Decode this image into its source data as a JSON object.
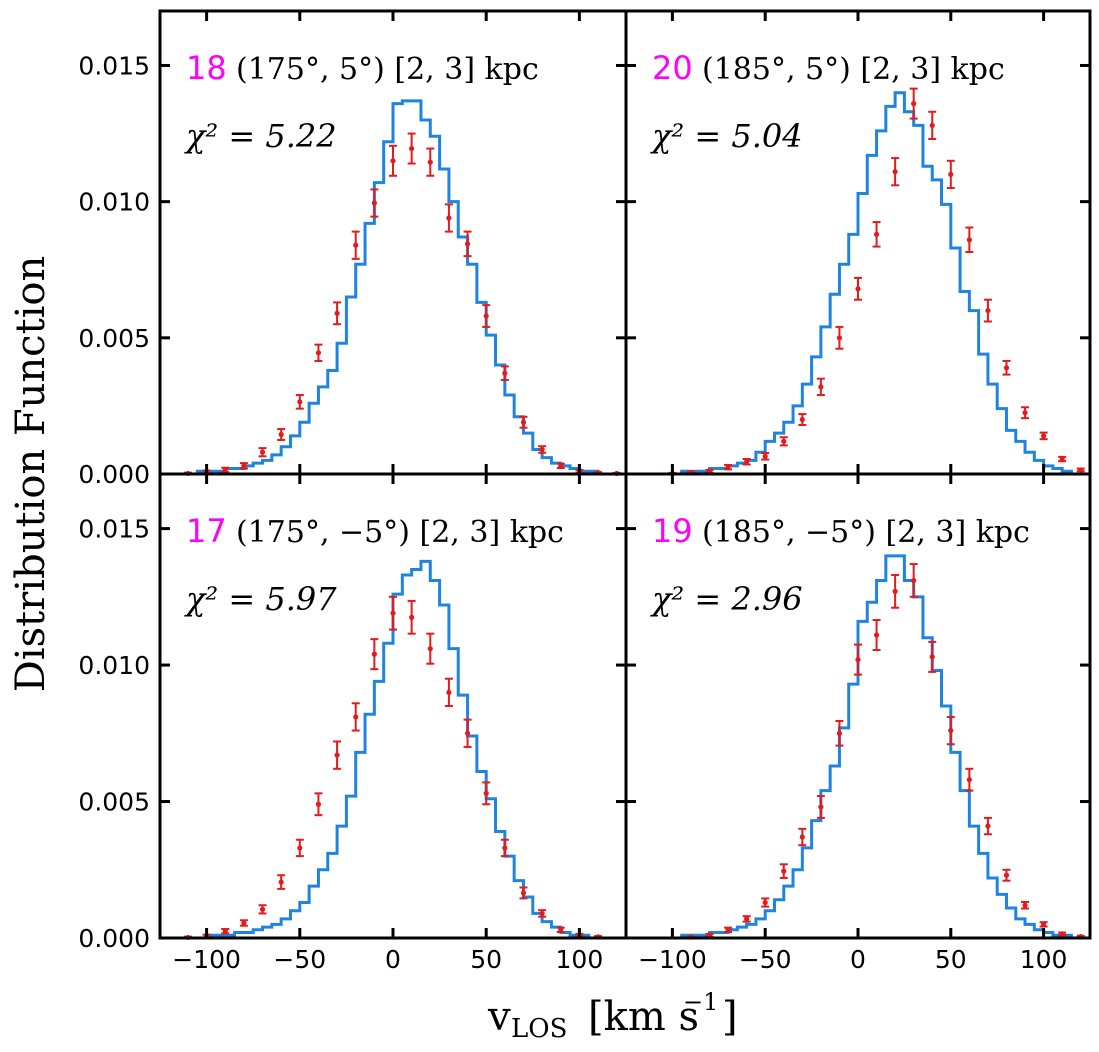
{
  "figure": {
    "ylabel": "Distribution Function",
    "xlabel_main": "v",
    "xlabel_sub": "LOS",
    "xlabel_unit": "[km s",
    "xlabel_unit_exp": "−1",
    "xlabel_unit_close": "]"
  },
  "colors": {
    "model": "#1f84e0",
    "data": "#e41a1c",
    "panel_id": "#ff00ff",
    "axes": "#000000"
  },
  "chart_data": [
    {
      "type": "histogram-step+errorbar",
      "panel_id": "18",
      "panel_position": "top-left",
      "label": "(175°, 5°) [2, 3] kpc",
      "label_coords": "(175",
      "label_lat": "5",
      "label_range": "[2, 3] kpc",
      "chi2_label": "χ² = 5.22",
      "chi2": "5.22",
      "xlim": [
        -125,
        125
      ],
      "ylim": [
        0,
        0.017
      ],
      "xticks": [
        -100,
        -50,
        0,
        50,
        100
      ],
      "yticks": [
        0.0,
        0.005,
        0.01,
        0.015
      ],
      "yticklabels": [
        "0.000",
        "0.005",
        "0.010",
        "0.015"
      ],
      "xticklabels": [
        "−100",
        "−50",
        "0",
        "50",
        "100"
      ],
      "show_xticklabels": false,
      "show_yticklabels": true,
      "model": {
        "bin_edges": [
          -125,
          -120,
          -115,
          -110,
          -105,
          -100,
          -95,
          -90,
          -85,
          -80,
          -75,
          -70,
          -65,
          -60,
          -55,
          -50,
          -45,
          -40,
          -35,
          -30,
          -25,
          -20,
          -15,
          -10,
          -5,
          0,
          5,
          10,
          15,
          20,
          25,
          30,
          35,
          40,
          45,
          50,
          55,
          60,
          65,
          70,
          75,
          80,
          85,
          90,
          95,
          100,
          105,
          110,
          115,
          120,
          125
        ],
        "values": [
          0.0,
          0.0,
          0.0,
          0.0,
          0.0001,
          0.0001,
          0.0001,
          0.0002,
          0.0002,
          0.0003,
          0.0004,
          0.0005,
          0.0007,
          0.001,
          0.0014,
          0.0019,
          0.0026,
          0.0032,
          0.0038,
          0.0048,
          0.0065,
          0.0077,
          0.0092,
          0.0107,
          0.0122,
          0.0136,
          0.0137,
          0.0137,
          0.013,
          0.0124,
          0.0112,
          0.01,
          0.0087,
          0.0077,
          0.0063,
          0.0051,
          0.004,
          0.0029,
          0.0021,
          0.0015,
          0.0009,
          0.0006,
          0.0004,
          0.0003,
          0.0002,
          0.0001,
          0.0001,
          0.0,
          0.0,
          0.0
        ]
      },
      "data": {
        "x": [
          -110,
          -100,
          -90,
          -80,
          -70,
          -60,
          -50,
          -40,
          -30,
          -20,
          -10,
          0,
          10,
          20,
          30,
          40,
          50,
          60,
          70,
          80,
          90,
          100,
          110,
          120
        ],
        "y": [
          2e-05,
          7e-05,
          0.00015,
          0.0003,
          0.0008,
          0.00145,
          0.00265,
          0.00445,
          0.0059,
          0.0084,
          0.00995,
          0.0115,
          0.01195,
          0.01145,
          0.0094,
          0.00845,
          0.0058,
          0.0037,
          0.0019,
          0.0009,
          0.0003,
          0.0001,
          4e-05,
          2e-05
        ],
        "err": [
          3e-05,
          6e-05,
          8e-05,
          0.0001,
          0.00015,
          0.0002,
          0.00025,
          0.0003,
          0.0004,
          0.0005,
          0.0005,
          0.00055,
          0.00055,
          0.0005,
          0.0005,
          0.00045,
          0.0004,
          0.00025,
          0.0002,
          0.00012,
          8e-05,
          5e-05,
          3e-05,
          2e-05
        ]
      }
    },
    {
      "type": "histogram-step+errorbar",
      "panel_id": "20",
      "panel_position": "top-right",
      "label": "(185°, 5°) [2, 3] kpc",
      "label_coords": "(185",
      "label_lat": "5",
      "label_range": "[2, 3] kpc",
      "chi2_label": "χ² = 5.04",
      "chi2": "5.04",
      "xlim": [
        -125,
        125
      ],
      "ylim": [
        0,
        0.017
      ],
      "xticks": [
        -100,
        -50,
        0,
        50,
        100
      ],
      "yticks": [
        0.0,
        0.005,
        0.01,
        0.015
      ],
      "yticklabels": [
        "0.000",
        "0.005",
        "0.010",
        "0.015"
      ],
      "xticklabels": [
        "−100",
        "−50",
        "0",
        "50",
        "100"
      ],
      "show_xticklabels": false,
      "show_yticklabels": false,
      "model": {
        "bin_edges": [
          -125,
          -120,
          -115,
          -110,
          -105,
          -100,
          -95,
          -90,
          -85,
          -80,
          -75,
          -70,
          -65,
          -60,
          -55,
          -50,
          -45,
          -40,
          -35,
          -30,
          -25,
          -20,
          -15,
          -10,
          -5,
          0,
          5,
          10,
          15,
          20,
          25,
          30,
          35,
          40,
          45,
          50,
          55,
          60,
          65,
          70,
          75,
          80,
          85,
          90,
          95,
          100,
          105,
          110,
          115,
          120,
          125
        ],
        "values": [
          0.0,
          0.0,
          0.0,
          0.0,
          0.0,
          0.0,
          0.0001,
          0.0001,
          0.0001,
          0.0002,
          0.0002,
          0.0003,
          0.0004,
          0.0005,
          0.0008,
          0.0012,
          0.0015,
          0.0019,
          0.0025,
          0.0033,
          0.0043,
          0.0054,
          0.0066,
          0.0077,
          0.0088,
          0.0103,
          0.0117,
          0.0126,
          0.0135,
          0.014,
          0.0133,
          0.0128,
          0.0113,
          0.0108,
          0.0099,
          0.0083,
          0.0067,
          0.006,
          0.0044,
          0.0033,
          0.0024,
          0.0016,
          0.0012,
          0.0008,
          0.0005,
          0.0003,
          0.0002,
          0.0001,
          0.0,
          0.0
        ]
      },
      "data": {
        "x": [
          -100,
          -90,
          -80,
          -70,
          -60,
          -50,
          -40,
          -30,
          -20,
          -10,
          0,
          10,
          20,
          30,
          40,
          50,
          60,
          70,
          80,
          90,
          100,
          110,
          120
        ],
        "y": [
          2e-05,
          5e-05,
          0.0001,
          0.00025,
          0.00045,
          0.00065,
          0.0012,
          0.002,
          0.0032,
          0.005,
          0.0068,
          0.0088,
          0.0111,
          0.0136,
          0.0128,
          0.011,
          0.0086,
          0.006,
          0.0039,
          0.00225,
          0.0014,
          0.00055,
          0.00015
        ],
        "err": [
          2e-05,
          4e-05,
          5e-05,
          8e-05,
          0.0001,
          0.00012,
          0.00015,
          0.0002,
          0.0003,
          0.0004,
          0.0004,
          0.00045,
          0.0005,
          0.00055,
          0.0005,
          0.0005,
          0.00045,
          0.0004,
          0.00025,
          0.0002,
          0.00012,
          8e-05,
          5e-05
        ]
      }
    },
    {
      "type": "histogram-step+errorbar",
      "panel_id": "17",
      "panel_position": "bottom-left",
      "label": "(175°, −5°) [2, 3] kpc",
      "label_coords": "(175",
      "label_lat": "− 5",
      "label_range": "[2, 3] kpc",
      "chi2_label": "χ² = 5.97",
      "chi2": "5.97",
      "xlim": [
        -125,
        125
      ],
      "ylim": [
        0,
        0.017
      ],
      "xticks": [
        -100,
        -50,
        0,
        50,
        100
      ],
      "yticks": [
        0.0,
        0.005,
        0.01,
        0.015
      ],
      "yticklabels": [
        "0.000",
        "0.005",
        "0.010",
        "0.015"
      ],
      "xticklabels": [
        "−100",
        "−50",
        "0",
        "50",
        "100"
      ],
      "show_xticklabels": true,
      "show_yticklabels": true,
      "model": {
        "bin_edges": [
          -125,
          -120,
          -115,
          -110,
          -105,
          -100,
          -95,
          -90,
          -85,
          -80,
          -75,
          -70,
          -65,
          -60,
          -55,
          -50,
          -45,
          -40,
          -35,
          -30,
          -25,
          -20,
          -15,
          -10,
          -5,
          0,
          5,
          10,
          15,
          20,
          25,
          30,
          35,
          40,
          45,
          50,
          55,
          60,
          65,
          70,
          75,
          80,
          85,
          90,
          95,
          100,
          105,
          110,
          115,
          120,
          125
        ],
        "values": [
          0.0,
          0.0,
          0.0,
          0.0,
          0.0,
          0.0001,
          0.0001,
          0.0001,
          0.0002,
          0.0002,
          0.0003,
          0.0004,
          0.0005,
          0.0007,
          0.001,
          0.0013,
          0.0019,
          0.0025,
          0.0031,
          0.0041,
          0.0052,
          0.0068,
          0.0082,
          0.0094,
          0.0108,
          0.0126,
          0.0133,
          0.0135,
          0.0138,
          0.0131,
          0.0122,
          0.0106,
          0.0089,
          0.0074,
          0.0061,
          0.0051,
          0.0039,
          0.003,
          0.0021,
          0.0015,
          0.0009,
          0.0006,
          0.0004,
          0.0002,
          0.0001,
          0.0001,
          0.0,
          0.0,
          0.0,
          0.0
        ]
      },
      "data": {
        "x": [
          -110,
          -100,
          -90,
          -80,
          -70,
          -60,
          -50,
          -40,
          -30,
          -20,
          -10,
          0,
          10,
          20,
          30,
          40,
          50,
          60,
          70,
          80,
          90,
          100,
          110
        ],
        "y": [
          2e-05,
          7e-05,
          0.00025,
          0.00055,
          0.00105,
          0.00205,
          0.0033,
          0.0049,
          0.0067,
          0.0081,
          0.0104,
          0.0119,
          0.01175,
          0.0106,
          0.009,
          0.0075,
          0.0053,
          0.0033,
          0.00165,
          0.0009,
          0.0003,
          0.0001,
          4e-05
        ],
        "err": [
          3e-05,
          5e-05,
          8e-05,
          0.0001,
          0.00015,
          0.00025,
          0.0003,
          0.0004,
          0.0005,
          0.0005,
          0.00055,
          0.0006,
          0.0006,
          0.00055,
          0.0005,
          0.0005,
          0.0004,
          0.0003,
          0.0002,
          0.00012,
          8e-05,
          5e-05,
          3e-05
        ]
      }
    },
    {
      "type": "histogram-step+errorbar",
      "panel_id": "19",
      "panel_position": "bottom-right",
      "label": "(185°, −5°) [2, 3] kpc",
      "label_coords": "(185",
      "label_lat": "− 5",
      "label_range": "[2, 3] kpc",
      "chi2_label": "χ² = 2.96",
      "chi2": "2.96",
      "xlim": [
        -125,
        125
      ],
      "ylim": [
        0,
        0.017
      ],
      "xticks": [
        -100,
        -50,
        0,
        50,
        100
      ],
      "yticks": [
        0.0,
        0.005,
        0.01,
        0.015
      ],
      "yticklabels": [
        "0.000",
        "0.005",
        "0.010",
        "0.015"
      ],
      "xticklabels": [
        "−100",
        "−50",
        "0",
        "50",
        "100"
      ],
      "show_xticklabels": true,
      "show_yticklabels": false,
      "model": {
        "bin_edges": [
          -125,
          -120,
          -115,
          -110,
          -105,
          -100,
          -95,
          -90,
          -85,
          -80,
          -75,
          -70,
          -65,
          -60,
          -55,
          -50,
          -45,
          -40,
          -35,
          -30,
          -25,
          -20,
          -15,
          -10,
          -5,
          0,
          5,
          10,
          15,
          20,
          25,
          30,
          35,
          40,
          45,
          50,
          55,
          60,
          65,
          70,
          75,
          80,
          85,
          90,
          95,
          100,
          105,
          110,
          115,
          120,
          125
        ],
        "values": [
          0.0,
          0.0,
          0.0,
          0.0,
          0.0,
          0.0,
          0.0001,
          0.0001,
          0.0001,
          0.0002,
          0.0002,
          0.0003,
          0.0004,
          0.0005,
          0.0007,
          0.001,
          0.0014,
          0.0019,
          0.0025,
          0.0033,
          0.0043,
          0.0054,
          0.0063,
          0.0077,
          0.0093,
          0.0116,
          0.0123,
          0.0131,
          0.014,
          0.014,
          0.0131,
          0.0125,
          0.011,
          0.0098,
          0.0085,
          0.0068,
          0.0054,
          0.0041,
          0.0031,
          0.0022,
          0.0016,
          0.0011,
          0.0007,
          0.0005,
          0.0003,
          0.0002,
          0.0001,
          0.0001,
          0.0,
          0.0
        ]
      },
      "data": {
        "x": [
          -90,
          -80,
          -70,
          -60,
          -50,
          -40,
          -30,
          -20,
          -10,
          0,
          10,
          20,
          30,
          40,
          50,
          60,
          70,
          80,
          90,
          100,
          110,
          120
        ],
        "y": [
          3e-05,
          0.0001,
          0.0003,
          0.0007,
          0.0013,
          0.00245,
          0.0037,
          0.0048,
          0.0075,
          0.0102,
          0.0111,
          0.0127,
          0.0131,
          0.0103,
          0.0076,
          0.0058,
          0.0041,
          0.0023,
          0.0012,
          0.0005,
          0.00015,
          5e-05
        ],
        "err": [
          2e-05,
          5e-05,
          8e-05,
          0.0001,
          0.00015,
          0.00025,
          0.0003,
          0.0004,
          0.00045,
          0.00055,
          0.00055,
          0.0006,
          0.0006,
          0.00055,
          0.0005,
          0.0004,
          0.0003,
          0.0002,
          0.00012,
          8e-05,
          5e-05,
          3e-05
        ]
      }
    }
  ]
}
